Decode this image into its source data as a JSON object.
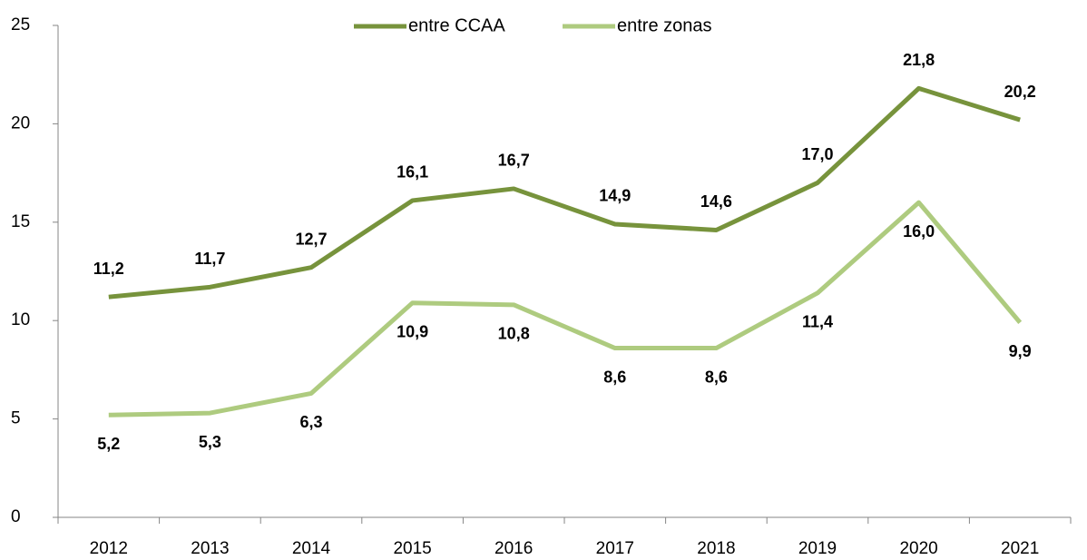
{
  "chart_data": {
    "type": "line",
    "categories": [
      "2012",
      "2013",
      "2014",
      "2015",
      "2016",
      "2017",
      "2018",
      "2019",
      "2020",
      "2021"
    ],
    "series": [
      {
        "name": "entre CCAA",
        "color": "#77933c",
        "values": [
          11.2,
          11.7,
          12.7,
          16.1,
          16.7,
          14.9,
          14.6,
          17.0,
          21.8,
          20.2
        ],
        "value_labels": [
          "11,2",
          "11,7",
          "12,7",
          "16,1",
          "16,7",
          "14,9",
          "14,6",
          "17,0",
          "21,8",
          "20,2"
        ]
      },
      {
        "name": "entre zonas",
        "color": "#aecb7f",
        "values": [
          5.2,
          5.3,
          6.3,
          10.9,
          10.8,
          8.6,
          8.6,
          11.4,
          16.0,
          9.9
        ],
        "value_labels": [
          "5,2",
          "5,3",
          "6,3",
          "10,9",
          "10,8",
          "8,6",
          "8,6",
          "11,4",
          "16,0",
          "9,9"
        ]
      }
    ],
    "ylim": [
      0,
      25
    ],
    "yticks": [
      0,
      5,
      10,
      15,
      20,
      25
    ],
    "grid": false,
    "legend": "top"
  }
}
